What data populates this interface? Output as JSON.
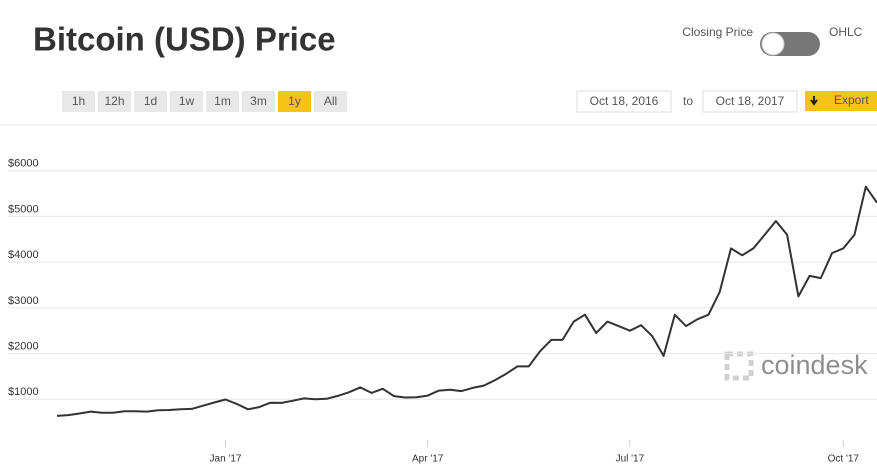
{
  "chart_data": {
    "type": "line",
    "title": "Bitcoin (USD) Price",
    "controls": {
      "closing_price": "Closing Price",
      "ohlc": "OHLC",
      "ranges": [
        "1h",
        "12h",
        "1d",
        "1w",
        "1m",
        "3m",
        "1y",
        "All"
      ],
      "active_range": "1y",
      "from": "Oct 18, 2016",
      "to_label": "to",
      "to": "Oct 18, 2017",
      "export": "Export"
    },
    "watermark": "coindesk",
    "categories": [
      null,
      null,
      null,
      null,
      null,
      null,
      null,
      null,
      null,
      null,
      null,
      null,
      null,
      null,
      null,
      "Jan '17",
      null,
      null,
      null,
      null,
      null,
      null,
      null,
      null,
      null,
      null,
      null,
      null,
      null,
      null,
      null,
      null,
      null,
      "Apr '17",
      null,
      null,
      null,
      null,
      null,
      null,
      null,
      null,
      null,
      null,
      null,
      null,
      null,
      null,
      null,
      null,
      null,
      "Jul '17",
      null,
      null,
      null,
      null,
      null,
      null,
      null,
      null,
      null,
      null,
      null,
      null,
      null,
      null,
      null,
      null,
      null,
      null,
      "Oct '17",
      null,
      null,
      null
    ],
    "series": [
      {
        "name": "Closing Price",
        "color": "#333333",
        "values": [
          636,
          655,
          690,
          730,
          705,
          705,
          740,
          740,
          730,
          760,
          765,
          780,
          790,
          860,
          930,
          995,
          900,
          780,
          830,
          925,
          920,
          970,
          1020,
          1000,
          1010,
          1075,
          1155,
          1260,
          1140,
          1230,
          1070,
          1040,
          1045,
          1080,
          1190,
          1210,
          1180,
          1250,
          1300,
          1420,
          1560,
          1720,
          1720,
          2050,
          2300,
          2300,
          2700,
          2850,
          2450,
          2700,
          2600,
          2500,
          2620,
          2380,
          1950,
          2850,
          2600,
          2750,
          2850,
          3350,
          4300,
          4150,
          4300,
          4600,
          4900,
          4600,
          3250,
          3700,
          3650,
          4200,
          4300,
          4600,
          5650,
          5300
        ]
      }
    ],
    "ylim": [
      0,
      7000
    ],
    "yticks": [
      {
        "value": 1000,
        "label": "$1000"
      },
      {
        "value": 2000,
        "label": "$2000"
      },
      {
        "value": 3000,
        "label": "$3000"
      },
      {
        "value": 4000,
        "label": "$4000"
      },
      {
        "value": 5000,
        "label": "$5000"
      },
      {
        "value": 6000,
        "label": "$6000"
      }
    ],
    "grid": true
  }
}
